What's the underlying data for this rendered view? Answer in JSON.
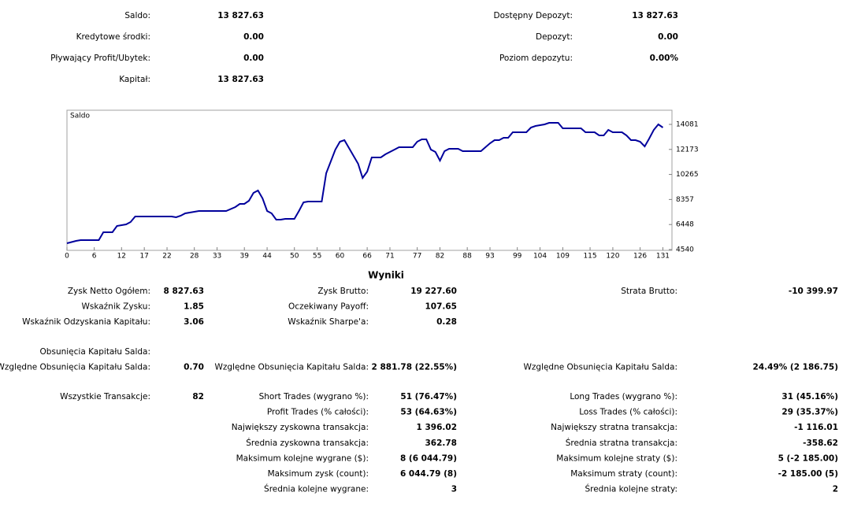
{
  "summary": {
    "left": [
      {
        "label": "Saldo:",
        "value": "13 827.63"
      },
      {
        "label": "Kredytowe środki:",
        "value": "0.00"
      },
      {
        "label": "Pływający Profit/Ubytek:",
        "value": "0.00"
      },
      {
        "label": "Kapitał:",
        "value": "13 827.63"
      }
    ],
    "right": [
      {
        "label": "Dostępny Depozyt:",
        "value": "13 827.63"
      },
      {
        "label": "Depozyt:",
        "value": "0.00"
      },
      {
        "label": "Poziom depozytu:",
        "value": "0.00%"
      }
    ]
  },
  "chart_data": {
    "type": "line",
    "title": "Saldo",
    "color": "#00009c",
    "x": [
      0,
      2,
      3,
      7,
      8,
      10,
      11,
      13,
      14,
      15,
      23,
      24,
      25,
      26,
      29,
      35,
      37,
      38,
      39,
      40,
      41,
      42,
      43,
      44,
      45,
      46,
      47,
      48,
      50,
      51,
      52,
      53,
      56,
      57,
      59,
      60,
      61,
      62,
      64,
      65,
      66,
      67,
      69,
      70,
      72,
      73,
      76,
      77,
      78,
      79,
      80,
      81,
      82,
      83,
      84,
      86,
      87,
      91,
      93,
      94,
      95,
      96,
      97,
      98,
      101,
      102,
      103,
      105,
      106,
      108,
      109,
      113,
      114,
      116,
      117,
      118,
      119,
      120,
      122,
      123,
      124,
      125,
      126,
      127,
      128,
      129,
      130,
      131
    ],
    "values": [
      5020,
      5200,
      5260,
      5260,
      5860,
      5860,
      6340,
      6460,
      6640,
      7060,
      7060,
      7000,
      7120,
      7300,
      7480,
      7480,
      7780,
      8020,
      8020,
      8260,
      8860,
      9040,
      8440,
      7480,
      7300,
      6820,
      6820,
      6880,
      6880,
      7480,
      8140,
      8200,
      8200,
      10360,
      12160,
      12760,
      12880,
      12280,
      11080,
      10000,
      10480,
      11560,
      11560,
      11800,
      12160,
      12340,
      12340,
      12760,
      12940,
      12940,
      12160,
      11980,
      11320,
      12040,
      12220,
      12220,
      12040,
      12040,
      12640,
      12880,
      12880,
      13060,
      13060,
      13480,
      13480,
      13840,
      13960,
      14080,
      14200,
      14200,
      13780,
      13780,
      13480,
      13480,
      13240,
      13240,
      13660,
      13480,
      13480,
      13240,
      12880,
      12880,
      12760,
      12400,
      13000,
      13660,
      14080,
      13840
    ],
    "xlim": [
      0,
      133
    ],
    "ylim": [
      4480,
      15160
    ],
    "xticks": [
      0,
      6,
      12,
      17,
      22,
      28,
      33,
      39,
      44,
      50,
      55,
      60,
      66,
      71,
      77,
      82,
      88,
      93,
      99,
      104,
      109,
      115,
      120,
      126,
      131
    ],
    "yticks": [
      4540,
      6448,
      8357,
      10265,
      12173,
      14081
    ]
  },
  "results": {
    "title": "Wyniki",
    "groups": [
      [
        [
          "Zysk Netto Ogółem:",
          "8 827.63",
          "Zysk Brutto:",
          "19 227.60",
          "Strata Brutto:",
          "-10 399.97"
        ],
        [
          "Wskaźnik Zysku:",
          "1.85",
          "Oczekiwany Payoff:",
          "107.65",
          null,
          null
        ],
        [
          "Wskaźnik Odzyskania Kapitału:",
          "3.06",
          "Wskaźnik Sharpe'a:",
          "0.28",
          null,
          null
        ]
      ],
      [
        [
          "Obsunięcia Kapitału Salda:",
          null,
          null,
          null,
          null,
          null
        ],
        [
          "Względne Obsunięcia Kapitału Salda:",
          "0.70",
          "Względne Obsunięcia Kapitału Salda:",
          "2 881.78 (22.55%)",
          "Względne Obsunięcia Kapitału Salda:",
          "24.49% (2 186.75)"
        ]
      ],
      [
        [
          "Wszystkie Transakcje:",
          "82",
          "Short Trades (wygrano %):",
          "51 (76.47%)",
          "Long Trades (wygrano %):",
          "31 (45.16%)"
        ],
        [
          null,
          null,
          "Profit Trades (% całości):",
          "53 (64.63%)",
          "Loss Trades (% całości):",
          "29 (35.37%)"
        ],
        [
          null,
          null,
          "Największy zyskowna transakcja:",
          "1 396.02",
          "Największy stratna transakcja:",
          "-1 116.01"
        ],
        [
          null,
          null,
          "Średnia zyskowna transakcja:",
          "362.78",
          "Średnia stratna transakcja:",
          "-358.62"
        ],
        [
          null,
          null,
          "Maksimum kolejne wygrane ($):",
          "8 (6 044.79)",
          "Maksimum kolejne straty ($):",
          "5 (-2 185.00)"
        ],
        [
          null,
          null,
          "Maksimum zysk (count):",
          "6 044.79 (8)",
          "Maksimum straty (count):",
          "-2 185.00 (5)"
        ],
        [
          null,
          null,
          "Średnia kolejne wygrane:",
          "3",
          "Średnia kolejne straty:",
          "2"
        ]
      ]
    ]
  }
}
